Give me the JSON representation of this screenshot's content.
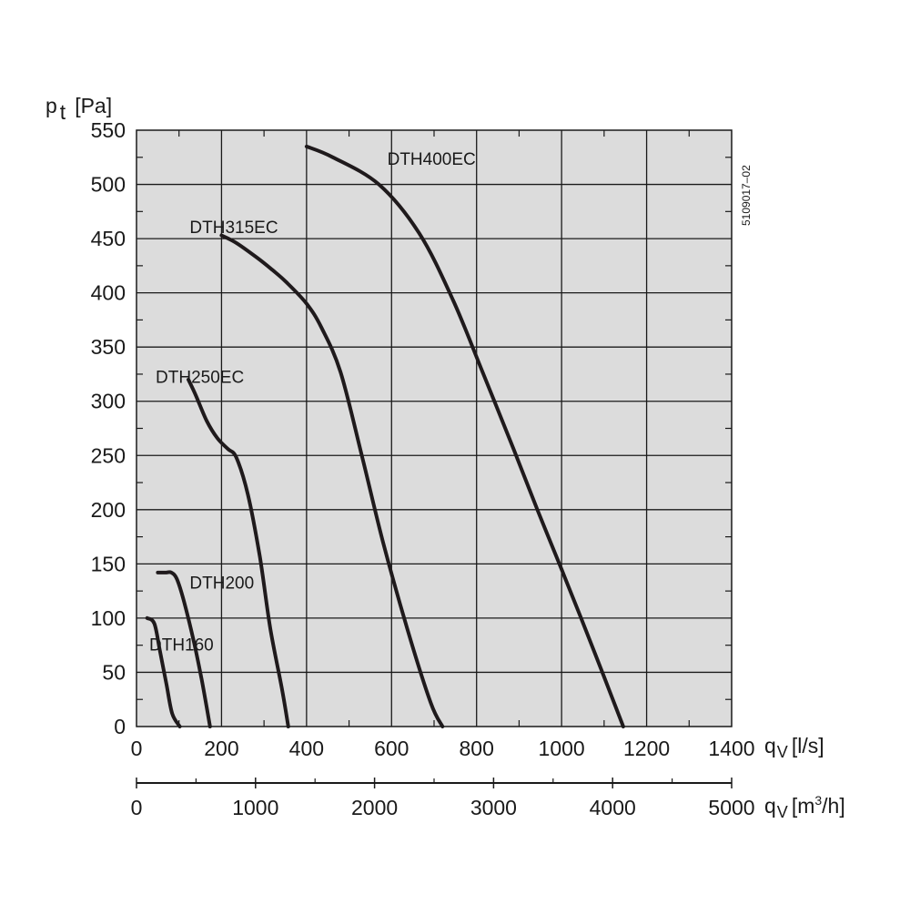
{
  "chart_data": {
    "type": "line",
    "y_axis": {
      "label_symbol": "p",
      "label_subscript": "t",
      "label_unit": "[Pa]",
      "range": [
        0,
        550
      ],
      "ticks": [
        0,
        50,
        100,
        150,
        200,
        250,
        300,
        350,
        400,
        450,
        500,
        550
      ],
      "tick_labels": [
        "0",
        "50",
        "100",
        "150",
        "200",
        "250",
        "300",
        "350",
        "400",
        "450",
        "500",
        "550"
      ],
      "minor_step": 25
    },
    "x_axis": {
      "label_symbol": "q",
      "label_subscript": "V",
      "label_unit": "[l/s]",
      "range": [
        0,
        1400
      ],
      "ticks": [
        0,
        200,
        400,
        600,
        800,
        1000,
        1200,
        1400
      ],
      "tick_labels": [
        "0",
        "200",
        "400",
        "600",
        "800",
        "1000",
        "1200",
        "1400"
      ],
      "minor_step": 100
    },
    "x2_axis": {
      "label_symbol": "q",
      "label_subscript": "V",
      "label_unit_pre": "[m",
      "label_unit_sup": "3",
      "label_unit_post": "/h]",
      "range": [
        0,
        5000
      ],
      "ticks": [
        0,
        1000,
        2000,
        3000,
        4000,
        5000
      ],
      "tick_labels": [
        "0",
        "1000",
        "2000",
        "3000",
        "4000",
        "5000"
      ],
      "minor_step": 500
    },
    "grid": true,
    "plot_background": "#dcdcdc",
    "curve_color": "#1f1a1c",
    "document_code": "5109017–02",
    "series": [
      {
        "name": "DTH160",
        "points": [
          [
            25,
            100
          ],
          [
            42,
            95
          ],
          [
            55,
            70
          ],
          [
            70,
            40
          ],
          [
            84,
            12
          ],
          [
            102,
            0
          ]
        ]
      },
      {
        "name": "DTH200",
        "points": [
          [
            50,
            142
          ],
          [
            68,
            142
          ],
          [
            82,
            142
          ],
          [
            95,
            136
          ],
          [
            112,
            115
          ],
          [
            135,
            78
          ],
          [
            153,
            44
          ],
          [
            165,
            18
          ],
          [
            173,
            0
          ]
        ]
      },
      {
        "name": "DTH250EC",
        "points": [
          [
            122,
            320
          ],
          [
            140,
            305
          ],
          [
            165,
            282
          ],
          [
            190,
            266
          ],
          [
            215,
            256
          ],
          [
            235,
            248
          ],
          [
            262,
            214
          ],
          [
            290,
            157
          ],
          [
            315,
            90
          ],
          [
            343,
            33
          ],
          [
            357,
            0
          ]
        ]
      },
      {
        "name": "DTH315EC",
        "points": [
          [
            200,
            453
          ],
          [
            235,
            446
          ],
          [
            285,
            432
          ],
          [
            320,
            421
          ],
          [
            352,
            410
          ],
          [
            400,
            390
          ],
          [
            435,
            368
          ],
          [
            480,
            327
          ],
          [
            530,
            250
          ],
          [
            580,
            170
          ],
          [
            637,
            90
          ],
          [
            692,
            22
          ],
          [
            720,
            0
          ]
        ]
      },
      {
        "name": "DTH400EC",
        "points": [
          [
            400,
            535
          ],
          [
            462,
            525
          ],
          [
            570,
            500
          ],
          [
            665,
            455
          ],
          [
            745,
            393
          ],
          [
            814,
            327
          ],
          [
            888,
            255
          ],
          [
            943,
            200
          ],
          [
            1000,
            145
          ],
          [
            1076,
            70
          ],
          [
            1145,
            0
          ]
        ]
      }
    ],
    "curve_labels": [
      {
        "series": "DTH400EC",
        "text": "DTH400EC",
        "x": 590,
        "y": 524
      },
      {
        "series": "DTH315EC",
        "text": "DTH315EC",
        "x": 125,
        "y": 461
      },
      {
        "series": "DTH250EC",
        "text": "DTH250EC",
        "x": 45,
        "y": 323
      },
      {
        "series": "DTH200",
        "text": "DTH200",
        "x": 125,
        "y": 133
      },
      {
        "series": "DTH160",
        "text": "DTH160",
        "x": 30,
        "y": 76
      }
    ]
  }
}
